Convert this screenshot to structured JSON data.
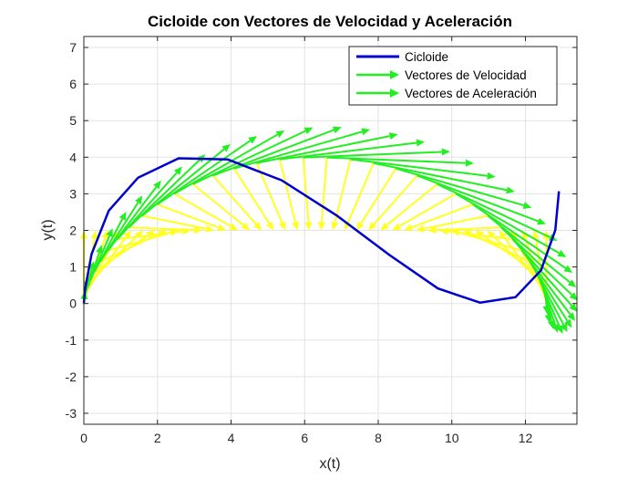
{
  "chart_data": {
    "type": "line",
    "title": "Cicloide con Vectores de Velocidad y Aceleración",
    "xlabel": "x(t)",
    "ylabel": "y(t)",
    "xlim": [
      0,
      13.4
    ],
    "ylim": [
      -3.3,
      7.3
    ],
    "xticks": [
      "0",
      "2",
      "4",
      "6",
      "8",
      "10",
      "12"
    ],
    "yticks": [
      "-3",
      "-2",
      "-1",
      "0",
      "1",
      "2",
      "3",
      "4",
      "5",
      "6",
      "7"
    ],
    "grid": true,
    "legend_position": "top-right",
    "legend": [
      "Cicloide",
      "Vectores de Velocidad",
      "Vectores de Aceleración"
    ],
    "radius": 2,
    "t_range": [
      0,
      6.2832
    ],
    "vector_count": 40,
    "colors": {
      "curve": "#0000cc",
      "velocity": "#22ee22",
      "acceleration": "#ffff22",
      "grid": "#e3e3e3",
      "axes": "#262626"
    },
    "series": [
      {
        "name": "Cicloide",
        "x": [
          0,
          0.027,
          0.209,
          0.677,
          1.474,
          2.577,
          3.911,
          5.375,
          6.867,
          8.306,
          9.619,
          10.767,
          11.73,
          12.424,
          12.812,
          12.911
        ],
        "y": [
          0,
          0.356,
          1.35,
          2.538,
          3.441,
          3.969,
          3.938,
          3.37,
          2.41,
          1.327,
          0.414,
          0.024,
          0.174,
          0.91,
          2.007,
          3.069
        ]
      }
    ]
  }
}
